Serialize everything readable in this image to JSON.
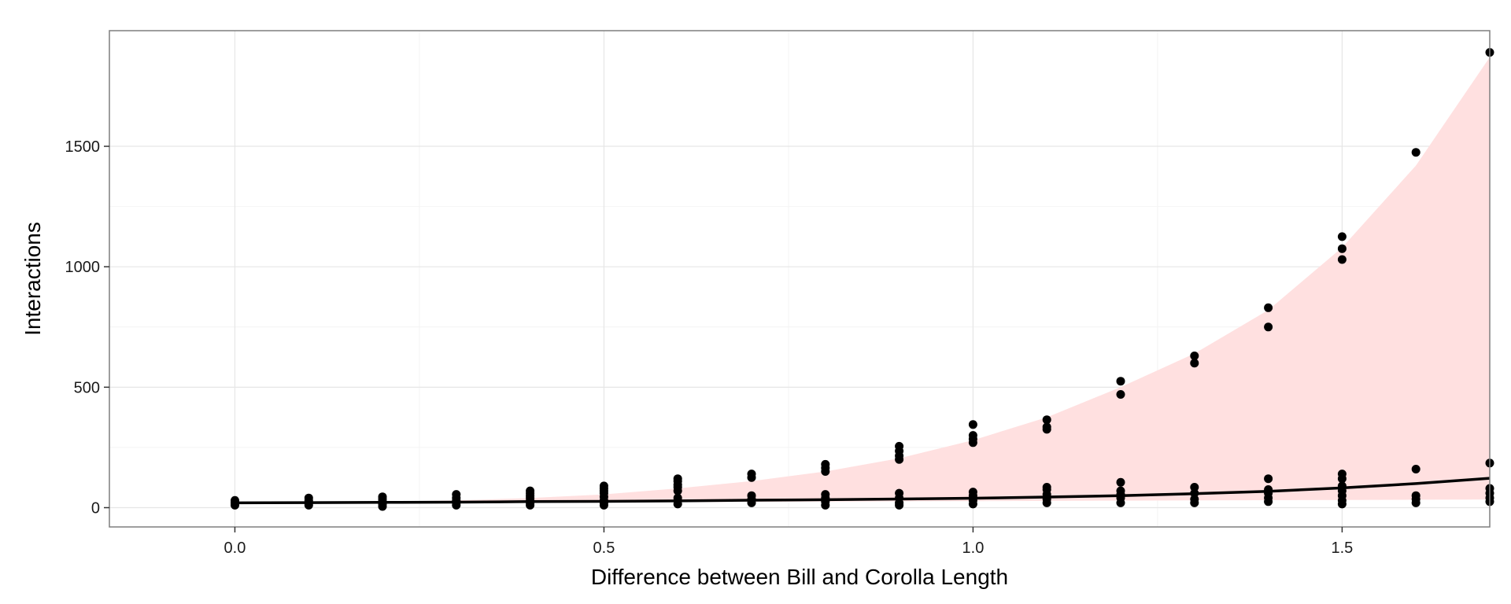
{
  "chart_data": {
    "type": "scatter",
    "title": "",
    "xlabel": "Difference between Bill and Corolla Length",
    "ylabel": "Interactions",
    "xlim": [
      -0.17,
      1.7
    ],
    "ylim": [
      -80,
      1980
    ],
    "x_ticks": [
      0.0,
      0.5,
      1.0,
      1.5
    ],
    "x_tick_labels": [
      "0.0",
      "0.5",
      "1.0",
      "1.5"
    ],
    "y_ticks": [
      0,
      500,
      1000,
      1500
    ],
    "y_tick_labels": [
      "0",
      "500",
      "1000",
      "1500"
    ],
    "grid": true,
    "legend": "none",
    "colors": {
      "points": "#000000",
      "fit_line": "#000000",
      "band": "#ffe0e0",
      "panel_border": "#7f7f7f",
      "grid_major": "#e6e6e6",
      "grid_minor": "#f4f4f4"
    },
    "points": [
      [
        0.0,
        10
      ],
      [
        0.0,
        20
      ],
      [
        0.0,
        30
      ],
      [
        0.1,
        10
      ],
      [
        0.1,
        20
      ],
      [
        0.1,
        30
      ],
      [
        0.1,
        40
      ],
      [
        0.2,
        5
      ],
      [
        0.2,
        15
      ],
      [
        0.2,
        25
      ],
      [
        0.2,
        35
      ],
      [
        0.2,
        45
      ],
      [
        0.3,
        10
      ],
      [
        0.3,
        20
      ],
      [
        0.3,
        30
      ],
      [
        0.3,
        40
      ],
      [
        0.3,
        55
      ],
      [
        0.4,
        10
      ],
      [
        0.4,
        20
      ],
      [
        0.4,
        30
      ],
      [
        0.4,
        40
      ],
      [
        0.4,
        50
      ],
      [
        0.4,
        60
      ],
      [
        0.4,
        70
      ],
      [
        0.5,
        10
      ],
      [
        0.5,
        20
      ],
      [
        0.5,
        30
      ],
      [
        0.5,
        45
      ],
      [
        0.5,
        60
      ],
      [
        0.5,
        70
      ],
      [
        0.5,
        80
      ],
      [
        0.5,
        90
      ],
      [
        0.6,
        15
      ],
      [
        0.6,
        30
      ],
      [
        0.6,
        40
      ],
      [
        0.6,
        70
      ],
      [
        0.6,
        85
      ],
      [
        0.6,
        95
      ],
      [
        0.6,
        110
      ],
      [
        0.6,
        120
      ],
      [
        0.7,
        20
      ],
      [
        0.7,
        35
      ],
      [
        0.7,
        50
      ],
      [
        0.7,
        125
      ],
      [
        0.7,
        140
      ],
      [
        0.8,
        10
      ],
      [
        0.8,
        25
      ],
      [
        0.8,
        40
      ],
      [
        0.8,
        55
      ],
      [
        0.8,
        150
      ],
      [
        0.8,
        165
      ],
      [
        0.8,
        180
      ],
      [
        0.9,
        10
      ],
      [
        0.9,
        20
      ],
      [
        0.9,
        40
      ],
      [
        0.9,
        60
      ],
      [
        0.9,
        200
      ],
      [
        0.9,
        215
      ],
      [
        0.9,
        235
      ],
      [
        0.9,
        255
      ],
      [
        1.0,
        15
      ],
      [
        1.0,
        30
      ],
      [
        1.0,
        50
      ],
      [
        1.0,
        65
      ],
      [
        1.0,
        270
      ],
      [
        1.0,
        285
      ],
      [
        1.0,
        300
      ],
      [
        1.0,
        345
      ],
      [
        1.1,
        20
      ],
      [
        1.1,
        35
      ],
      [
        1.1,
        55
      ],
      [
        1.1,
        75
      ],
      [
        1.1,
        85
      ],
      [
        1.1,
        325
      ],
      [
        1.1,
        335
      ],
      [
        1.1,
        365
      ],
      [
        1.2,
        20
      ],
      [
        1.2,
        40
      ],
      [
        1.2,
        55
      ],
      [
        1.2,
        70
      ],
      [
        1.2,
        105
      ],
      [
        1.2,
        470
      ],
      [
        1.2,
        525
      ],
      [
        1.3,
        20
      ],
      [
        1.3,
        35
      ],
      [
        1.3,
        60
      ],
      [
        1.3,
        85
      ],
      [
        1.3,
        600
      ],
      [
        1.3,
        630
      ],
      [
        1.4,
        25
      ],
      [
        1.4,
        40
      ],
      [
        1.4,
        60
      ],
      [
        1.4,
        75
      ],
      [
        1.4,
        120
      ],
      [
        1.4,
        750
      ],
      [
        1.4,
        830
      ],
      [
        1.5,
        15
      ],
      [
        1.5,
        30
      ],
      [
        1.5,
        50
      ],
      [
        1.5,
        70
      ],
      [
        1.5,
        90
      ],
      [
        1.5,
        120
      ],
      [
        1.5,
        140
      ],
      [
        1.5,
        1030
      ],
      [
        1.5,
        1075
      ],
      [
        1.5,
        1125
      ],
      [
        1.6,
        20
      ],
      [
        1.6,
        35
      ],
      [
        1.6,
        50
      ],
      [
        1.6,
        160
      ],
      [
        1.6,
        1475
      ],
      [
        1.7,
        25
      ],
      [
        1.7,
        40
      ],
      [
        1.7,
        60
      ],
      [
        1.7,
        80
      ],
      [
        1.7,
        185
      ],
      [
        1.7,
        1890
      ]
    ],
    "fit_line": [
      [
        0.0,
        20
      ],
      [
        0.1,
        21
      ],
      [
        0.2,
        22
      ],
      [
        0.3,
        23
      ],
      [
        0.4,
        25
      ],
      [
        0.5,
        26
      ],
      [
        0.6,
        28
      ],
      [
        0.7,
        31
      ],
      [
        0.8,
        33
      ],
      [
        0.9,
        36
      ],
      [
        1.0,
        39
      ],
      [
        1.1,
        44
      ],
      [
        1.2,
        50
      ],
      [
        1.3,
        58
      ],
      [
        1.4,
        68
      ],
      [
        1.5,
        82
      ],
      [
        1.6,
        100
      ],
      [
        1.7,
        122
      ]
    ],
    "band_upper": [
      [
        0.0,
        20
      ],
      [
        0.1,
        22
      ],
      [
        0.2,
        25
      ],
      [
        0.3,
        30
      ],
      [
        0.4,
        40
      ],
      [
        0.5,
        55
      ],
      [
        0.6,
        80
      ],
      [
        0.7,
        110
      ],
      [
        0.8,
        150
      ],
      [
        0.9,
        205
      ],
      [
        1.0,
        280
      ],
      [
        1.1,
        375
      ],
      [
        1.2,
        500
      ],
      [
        1.3,
        640
      ],
      [
        1.4,
        820
      ],
      [
        1.5,
        1080
      ],
      [
        1.6,
        1420
      ],
      [
        1.7,
        1870
      ]
    ],
    "band_lower": [
      [
        0.0,
        18
      ],
      [
        0.1,
        19
      ],
      [
        0.2,
        20
      ],
      [
        0.3,
        20
      ],
      [
        0.4,
        21
      ],
      [
        0.5,
        22
      ],
      [
        0.6,
        23
      ],
      [
        0.7,
        24
      ],
      [
        0.8,
        25
      ],
      [
        0.9,
        26
      ],
      [
        1.0,
        27
      ],
      [
        1.1,
        28
      ],
      [
        1.2,
        29
      ],
      [
        1.3,
        30
      ],
      [
        1.4,
        31
      ],
      [
        1.5,
        32
      ],
      [
        1.6,
        33
      ],
      [
        1.7,
        34
      ]
    ]
  }
}
